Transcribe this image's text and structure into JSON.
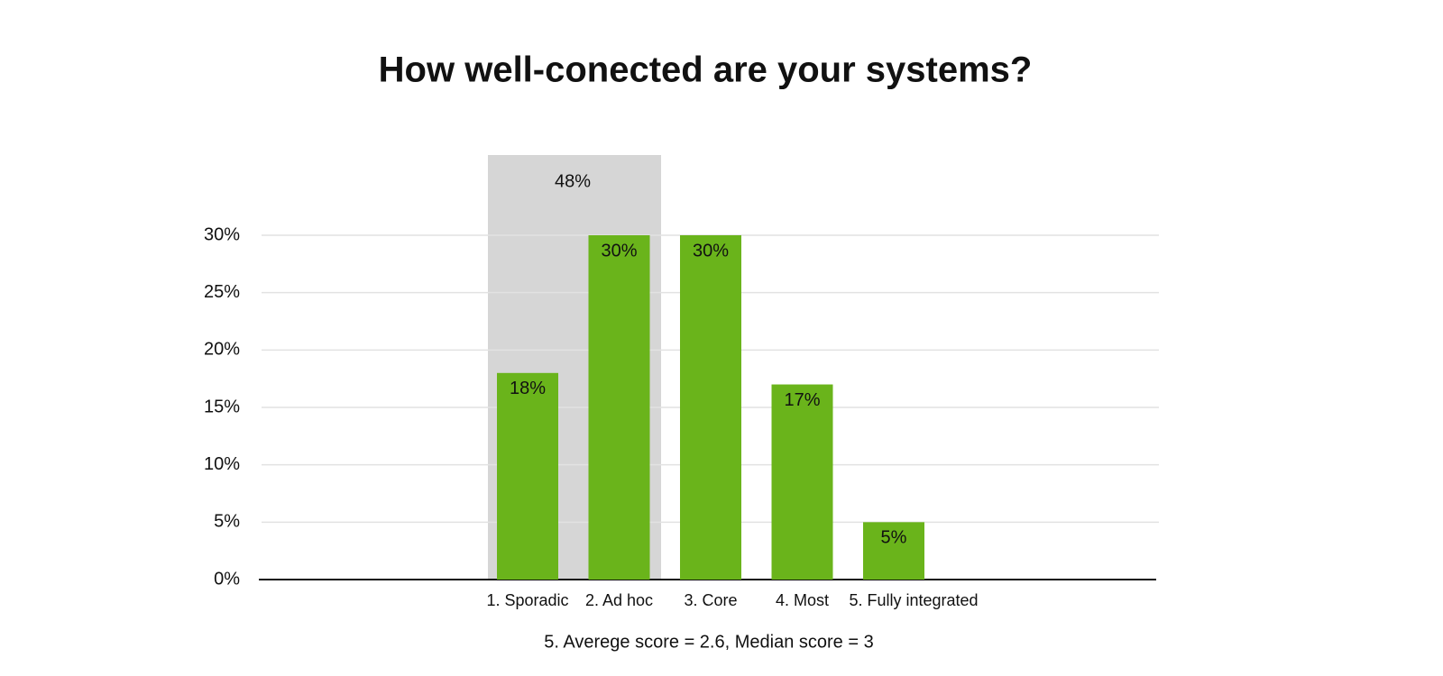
{
  "chart_data": {
    "type": "bar",
    "title": "How well-conected are your systems?",
    "categories": [
      "1. Sporadic",
      "2. Ad hoc",
      "3. Core",
      "4. Most",
      "5. Fully integrated"
    ],
    "values": [
      18,
      30,
      30,
      17,
      5
    ],
    "value_labels": [
      "18%",
      "30%",
      "30%",
      "17%",
      "5%"
    ],
    "color": "#6ab41b",
    "ylim": [
      0,
      30
    ],
    "yticks": [
      {
        "value": 0,
        "label": "0%"
      },
      {
        "value": 5,
        "label": "5%"
      },
      {
        "value": 10,
        "label": "10%"
      },
      {
        "value": 15,
        "label": "15%"
      },
      {
        "value": 20,
        "label": "20%"
      },
      {
        "value": 25,
        "label": "25%"
      },
      {
        "value": 30,
        "label": "30%"
      }
    ],
    "grid": true,
    "highlight_label": "48%",
    "footnote": "5. Averege score = 2.6, Median score = 3"
  }
}
